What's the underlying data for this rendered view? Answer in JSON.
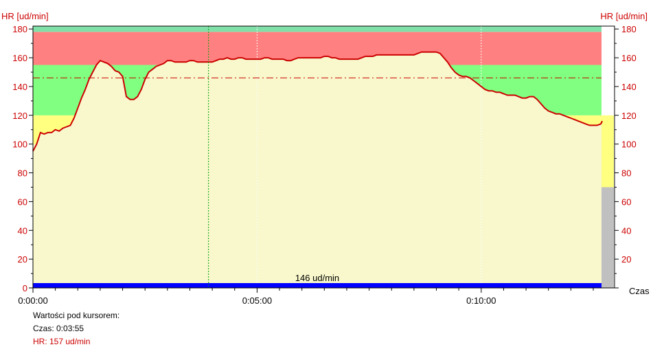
{
  "chart_data": {
    "type": "line",
    "ylabel_left": "HR [ud/min]",
    "ylabel_right": "HR [ud/min]",
    "xlabel": "Czas",
    "y_ticks": [
      0,
      20,
      40,
      60,
      80,
      100,
      120,
      140,
      160,
      180
    ],
    "ylim": [
      0,
      182
    ],
    "x_tick_labels": [
      "0:00:00",
      "0:05:00",
      "0:10:00"
    ],
    "x_tick_values_s": [
      0,
      300,
      600
    ],
    "xlim_s": [
      0,
      780
    ],
    "zones": [
      {
        "name": "zone-light-yellow",
        "from": 0,
        "to": 120,
        "color": "#f8f8cc"
      },
      {
        "name": "zone-yellow",
        "from": 100,
        "to": 120,
        "color": "#ffff80"
      },
      {
        "name": "zone-green",
        "from": 120,
        "to": 155,
        "color": "#80ff80"
      },
      {
        "name": "zone-red",
        "from": 155,
        "to": 178,
        "color": "#ff8080"
      },
      {
        "name": "zone-teal",
        "from": 178,
        "to": 182,
        "color": "#80e0a8"
      }
    ],
    "average": {
      "value": 146,
      "label": "146 ud/min",
      "color": "#cc0000"
    },
    "cursor_time_s": 235,
    "series": [
      {
        "color": "#cc0000",
        "points": [
          [
            0,
            95
          ],
          [
            5,
            100
          ],
          [
            10,
            108
          ],
          [
            15,
            107
          ],
          [
            20,
            108
          ],
          [
            25,
            108
          ],
          [
            30,
            110
          ],
          [
            35,
            109
          ],
          [
            40,
            111
          ],
          [
            45,
            112
          ],
          [
            50,
            113
          ],
          [
            55,
            118
          ],
          [
            60,
            125
          ],
          [
            65,
            132
          ],
          [
            70,
            138
          ],
          [
            75,
            145
          ],
          [
            80,
            150
          ],
          [
            85,
            155
          ],
          [
            90,
            158
          ],
          [
            95,
            157
          ],
          [
            100,
            156
          ],
          [
            105,
            154
          ],
          [
            110,
            151
          ],
          [
            115,
            150
          ],
          [
            120,
            147
          ],
          [
            125,
            133
          ],
          [
            130,
            131
          ],
          [
            135,
            131
          ],
          [
            140,
            133
          ],
          [
            145,
            138
          ],
          [
            150,
            145
          ],
          [
            155,
            150
          ],
          [
            160,
            152
          ],
          [
            165,
            154
          ],
          [
            170,
            155
          ],
          [
            175,
            156
          ],
          [
            180,
            158
          ],
          [
            185,
            158
          ],
          [
            190,
            157
          ],
          [
            195,
            157
          ],
          [
            200,
            157
          ],
          [
            205,
            157
          ],
          [
            210,
            158
          ],
          [
            215,
            158
          ],
          [
            220,
            157
          ],
          [
            225,
            157
          ],
          [
            230,
            157
          ],
          [
            235,
            157
          ],
          [
            240,
            157
          ],
          [
            245,
            158
          ],
          [
            250,
            159
          ],
          [
            255,
            159
          ],
          [
            260,
            160
          ],
          [
            265,
            159
          ],
          [
            270,
            159
          ],
          [
            275,
            160
          ],
          [
            280,
            160
          ],
          [
            285,
            159
          ],
          [
            290,
            159
          ],
          [
            295,
            159
          ],
          [
            300,
            159
          ],
          [
            305,
            159
          ],
          [
            310,
            160
          ],
          [
            315,
            160
          ],
          [
            320,
            159
          ],
          [
            325,
            159
          ],
          [
            330,
            159
          ],
          [
            335,
            159
          ],
          [
            340,
            158
          ],
          [
            345,
            158
          ],
          [
            350,
            159
          ],
          [
            355,
            160
          ],
          [
            360,
            160
          ],
          [
            365,
            160
          ],
          [
            370,
            160
          ],
          [
            375,
            160
          ],
          [
            380,
            160
          ],
          [
            385,
            160
          ],
          [
            390,
            161
          ],
          [
            395,
            161
          ],
          [
            400,
            160
          ],
          [
            405,
            160
          ],
          [
            410,
            159
          ],
          [
            415,
            159
          ],
          [
            420,
            159
          ],
          [
            425,
            159
          ],
          [
            430,
            159
          ],
          [
            435,
            159
          ],
          [
            440,
            160
          ],
          [
            445,
            161
          ],
          [
            450,
            161
          ],
          [
            455,
            161
          ],
          [
            460,
            162
          ],
          [
            465,
            162
          ],
          [
            470,
            162
          ],
          [
            475,
            162
          ],
          [
            480,
            162
          ],
          [
            485,
            162
          ],
          [
            490,
            162
          ],
          [
            495,
            162
          ],
          [
            500,
            162
          ],
          [
            505,
            162
          ],
          [
            510,
            162
          ],
          [
            515,
            163
          ],
          [
            520,
            164
          ],
          [
            525,
            164
          ],
          [
            530,
            164
          ],
          [
            535,
            164
          ],
          [
            540,
            164
          ],
          [
            545,
            163
          ],
          [
            550,
            160
          ],
          [
            555,
            157
          ],
          [
            560,
            153
          ],
          [
            565,
            150
          ],
          [
            570,
            148
          ],
          [
            575,
            147
          ],
          [
            580,
            147
          ],
          [
            585,
            146
          ],
          [
            590,
            144
          ],
          [
            595,
            142
          ],
          [
            600,
            140
          ],
          [
            605,
            138
          ],
          [
            610,
            137
          ],
          [
            615,
            137
          ],
          [
            620,
            136
          ],
          [
            625,
            136
          ],
          [
            630,
            135
          ],
          [
            635,
            134
          ],
          [
            640,
            134
          ],
          [
            645,
            134
          ],
          [
            650,
            133
          ],
          [
            655,
            132
          ],
          [
            660,
            132
          ],
          [
            665,
            133
          ],
          [
            670,
            133
          ],
          [
            675,
            131
          ],
          [
            680,
            128
          ],
          [
            685,
            125
          ],
          [
            690,
            123
          ],
          [
            695,
            122
          ],
          [
            700,
            121
          ],
          [
            705,
            121
          ],
          [
            710,
            120
          ],
          [
            715,
            119
          ],
          [
            720,
            118
          ],
          [
            725,
            117
          ],
          [
            730,
            116
          ],
          [
            735,
            115
          ],
          [
            740,
            114
          ],
          [
            745,
            113
          ],
          [
            750,
            113
          ],
          [
            755,
            113
          ],
          [
            760,
            114
          ],
          [
            762,
            116
          ]
        ]
      }
    ],
    "bottom_bar_color": "#0000ff",
    "right_column": {
      "yellow_from": 70,
      "yellow_to": 120,
      "gray_to": 70,
      "yellow_color": "#ffff80",
      "gray_color": "#c0c0c0"
    }
  },
  "cursor_panel": {
    "title": "Wartości pod kursorem:",
    "time": "Czas: 0:03:55",
    "hr": "HR: 157 ud/min"
  }
}
